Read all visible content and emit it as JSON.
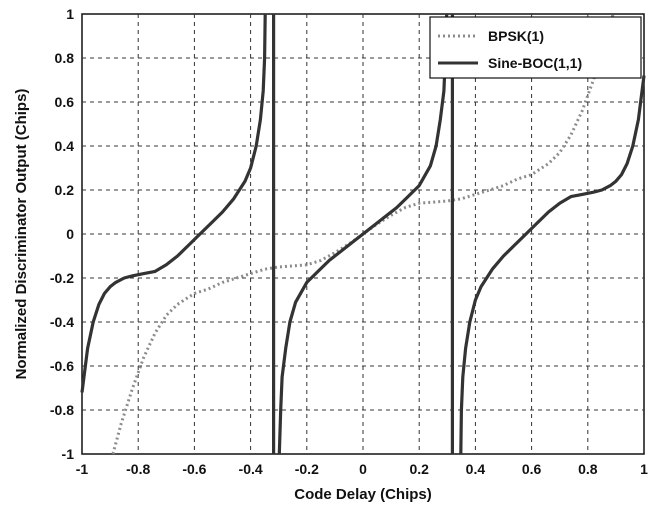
{
  "chart_data": {
    "type": "line",
    "title": "",
    "xlabel": "Code Delay (Chips)",
    "ylabel": "Normalized Discriminator Output (Chips)",
    "xlim": [
      -1,
      1
    ],
    "ylim": [
      -1,
      1
    ],
    "grid": true,
    "legend_position": "top-right",
    "x_ticks": [
      "-1",
      "-0.8",
      "-0.6",
      "-0.4",
      "-0.2",
      "0",
      "0.2",
      "0.4",
      "0.6",
      "0.8",
      "1"
    ],
    "y_ticks": [
      "-1",
      "-0.8",
      "-0.6",
      "-0.4",
      "-0.2",
      "0",
      "0.2",
      "0.4",
      "0.6",
      "0.8",
      "1"
    ],
    "series": [
      {
        "name": "BPSK(1)",
        "style": "dotted",
        "color": "#8c8c8c",
        "segments": [
          [
            [
              -0.89,
              -1
            ],
            [
              -0.86,
              -0.86
            ],
            [
              -0.82,
              -0.7
            ],
            [
              -0.78,
              -0.56
            ],
            [
              -0.74,
              -0.45
            ],
            [
              -0.7,
              -0.37
            ],
            [
              -0.66,
              -0.32
            ],
            [
              -0.6,
              -0.27
            ],
            [
              -0.55,
              -0.25
            ],
            [
              -0.5,
              -0.22
            ],
            [
              -0.4,
              -0.18
            ],
            [
              -0.35,
              -0.16
            ],
            [
              -0.3,
              -0.15
            ],
            [
              -0.25,
              -0.145
            ],
            [
              -0.2,
              -0.14
            ],
            [
              -0.15,
              -0.12
            ],
            [
              -0.1,
              -0.085
            ],
            [
              -0.05,
              -0.045
            ],
            [
              0,
              0
            ],
            [
              0.05,
              0.045
            ],
            [
              0.1,
              0.085
            ],
            [
              0.15,
              0.12
            ],
            [
              0.2,
              0.14
            ],
            [
              0.25,
              0.145
            ],
            [
              0.3,
              0.15
            ],
            [
              0.35,
              0.16
            ],
            [
              0.4,
              0.18
            ],
            [
              0.5,
              0.22
            ],
            [
              0.55,
              0.25
            ],
            [
              0.6,
              0.27
            ],
            [
              0.66,
              0.32
            ],
            [
              0.7,
              0.37
            ],
            [
              0.74,
              0.45
            ],
            [
              0.78,
              0.56
            ],
            [
              0.82,
              0.7
            ],
            [
              0.86,
              0.86
            ],
            [
              0.89,
              1
            ]
          ]
        ]
      },
      {
        "name": "Sine-BOC(1,1)",
        "style": "solid",
        "color": "#333333",
        "segments": [
          [
            [
              -1,
              -0.72
            ],
            [
              -0.98,
              -0.52
            ],
            [
              -0.96,
              -0.4
            ],
            [
              -0.94,
              -0.32
            ],
            [
              -0.92,
              -0.27
            ],
            [
              -0.9,
              -0.24
            ],
            [
              -0.88,
              -0.22
            ],
            [
              -0.85,
              -0.2
            ],
            [
              -0.82,
              -0.19
            ],
            [
              -0.78,
              -0.18
            ],
            [
              -0.74,
              -0.17
            ],
            [
              -0.7,
              -0.14
            ],
            [
              -0.66,
              -0.1
            ],
            [
              -0.62,
              -0.05
            ],
            [
              -0.58,
              0
            ],
            [
              -0.54,
              0.05
            ],
            [
              -0.5,
              0.1
            ],
            [
              -0.46,
              0.16
            ],
            [
              -0.42,
              0.24
            ],
            [
              -0.4,
              0.3
            ],
            [
              -0.38,
              0.4
            ],
            [
              -0.365,
              0.52
            ],
            [
              -0.355,
              0.65
            ],
            [
              -0.35,
              0.8
            ],
            [
              -0.348,
              1
            ]
          ],
          [
            [
              -0.318,
              1
            ],
            [
              -0.318,
              -1
            ]
          ],
          [
            [
              -0.298,
              -1
            ],
            [
              -0.293,
              -0.8
            ],
            [
              -0.288,
              -0.65
            ],
            [
              -0.275,
              -0.52
            ],
            [
              -0.26,
              -0.4
            ],
            [
              -0.24,
              -0.31
            ],
            [
              -0.2,
              -0.22
            ],
            [
              -0.16,
              -0.17
            ],
            [
              -0.12,
              -0.12
            ],
            [
              -0.08,
              -0.08
            ],
            [
              -0.04,
              -0.04
            ],
            [
              0,
              0
            ],
            [
              0.04,
              0.04
            ],
            [
              0.08,
              0.08
            ],
            [
              0.12,
              0.12
            ],
            [
              0.16,
              0.17
            ],
            [
              0.2,
              0.22
            ],
            [
              0.24,
              0.31
            ],
            [
              0.26,
              0.4
            ],
            [
              0.275,
              0.52
            ],
            [
              0.288,
              0.65
            ],
            [
              0.293,
              0.8
            ],
            [
              0.298,
              1
            ]
          ],
          [
            [
              0.318,
              -1
            ],
            [
              0.318,
              1
            ]
          ],
          [
            [
              0.348,
              -1
            ],
            [
              0.35,
              -0.8
            ],
            [
              0.355,
              -0.65
            ],
            [
              0.365,
              -0.52
            ],
            [
              0.38,
              -0.4
            ],
            [
              0.4,
              -0.3
            ],
            [
              0.42,
              -0.24
            ],
            [
              0.46,
              -0.16
            ],
            [
              0.5,
              -0.1
            ],
            [
              0.54,
              -0.05
            ],
            [
              0.58,
              0
            ],
            [
              0.62,
              0.05
            ],
            [
              0.66,
              0.1
            ],
            [
              0.7,
              0.14
            ],
            [
              0.74,
              0.17
            ],
            [
              0.78,
              0.18
            ],
            [
              0.82,
              0.19
            ],
            [
              0.85,
              0.2
            ],
            [
              0.88,
              0.22
            ],
            [
              0.9,
              0.24
            ],
            [
              0.92,
              0.27
            ],
            [
              0.94,
              0.32
            ],
            [
              0.96,
              0.4
            ],
            [
              0.98,
              0.52
            ],
            [
              1,
              0.72
            ]
          ]
        ]
      }
    ]
  }
}
